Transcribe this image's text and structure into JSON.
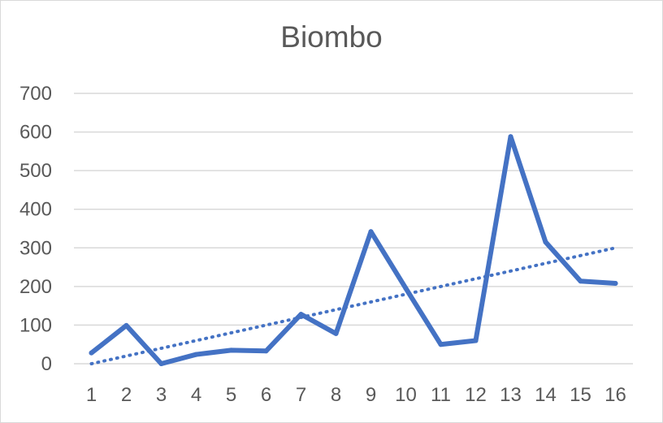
{
  "chart_data": {
    "type": "line",
    "title": "Biombo",
    "xlabel": "",
    "ylabel": "",
    "categories": [
      "1",
      "2",
      "3",
      "4",
      "5",
      "6",
      "7",
      "8",
      "9",
      "10",
      "11",
      "12",
      "13",
      "14",
      "15",
      "16"
    ],
    "series": [
      {
        "values": [
          28,
          99,
          0,
          24,
          35,
          33,
          128,
          78,
          342,
          195,
          50,
          60,
          588,
          315,
          214,
          208
        ],
        "color": "#4472c4",
        "line_style": "solid"
      }
    ],
    "trendline": {
      "type": "linear",
      "values": [
        0,
        20,
        40,
        60,
        80,
        100,
        120,
        140,
        160,
        180,
        200,
        220,
        240,
        260,
        280,
        300
      ],
      "color": "#4472c4",
      "line_style": "dotted"
    },
    "ylim": [
      0,
      700
    ],
    "yticks": [
      0,
      100,
      200,
      300,
      400,
      500,
      600,
      700
    ],
    "grid": true,
    "legend": "none"
  }
}
